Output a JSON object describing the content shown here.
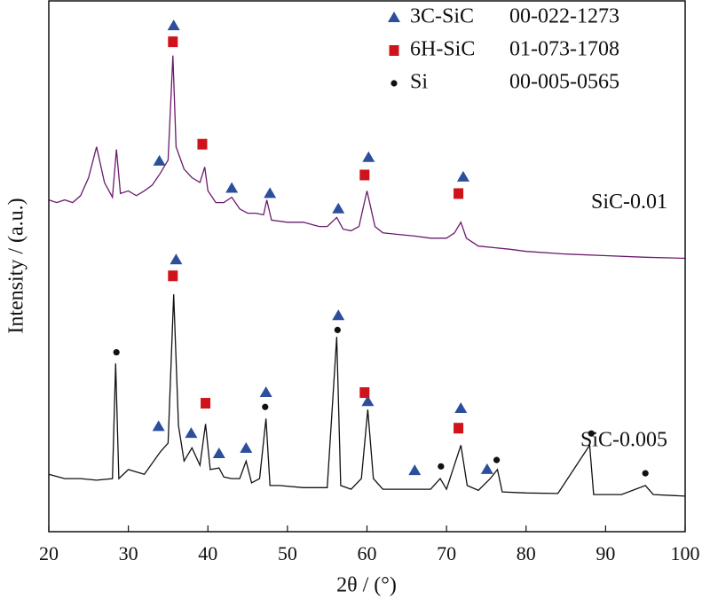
{
  "chart_data": {
    "type": "line",
    "x_label": "2θ / (°)",
    "y_label": "Intensity / (a.u.)",
    "xlim": [
      20,
      100
    ],
    "xticks": [
      20,
      30,
      40,
      50,
      60,
      70,
      80,
      90,
      100
    ],
    "ylim": [
      0,
      100
    ],
    "series": [
      {
        "name": "SiC-0.01",
        "color": "#6b1a6e",
        "x": [
          20,
          21,
          22,
          23,
          24,
          25,
          26,
          27,
          28,
          28.5,
          29,
          30,
          31,
          32,
          33,
          34,
          35,
          35.6,
          36,
          37,
          38,
          39,
          39.6,
          40,
          41,
          42,
          43,
          44,
          45,
          46,
          47,
          47.4,
          48,
          50,
          52,
          54,
          55,
          56.2,
          57,
          58,
          59,
          60,
          61,
          62,
          64,
          66,
          68,
          70,
          71,
          71.8,
          72.5,
          74,
          76,
          78,
          80,
          85,
          90,
          95,
          100
        ],
        "values": [
          62.5,
          62,
          62.5,
          62,
          63.3,
          66.7,
          72.5,
          65.8,
          63,
          72,
          63.7,
          64.2,
          63.3,
          64.2,
          65.3,
          67.5,
          70,
          89.7,
          72.5,
          68.3,
          66.7,
          65.8,
          68.7,
          64.2,
          62,
          62,
          63,
          60.8,
          60,
          60,
          59.7,
          62.5,
          58.7,
          58.3,
          58.3,
          57.5,
          57.5,
          59.2,
          57,
          56.7,
          57.5,
          64.2,
          57.5,
          56.3,
          56,
          55.7,
          55.3,
          55.3,
          56.3,
          58.3,
          55.3,
          53.8,
          53.5,
          53.2,
          52.8,
          52.3,
          52,
          51.7,
          51.5
        ]
      },
      {
        "name": "SiC-0.005",
        "color": "#111111",
        "x": [
          20,
          22,
          24,
          26,
          28,
          28.4,
          28.8,
          30,
          32,
          34,
          35,
          35.7,
          36.3,
          37,
          38,
          39,
          39.7,
          40.3,
          41.4,
          42,
          43,
          44,
          44.8,
          45.5,
          46.5,
          47.3,
          47.8,
          49,
          52,
          55,
          56.2,
          56.7,
          58,
          59.3,
          60.1,
          60.8,
          62,
          64,
          66,
          68,
          69.2,
          70,
          71.8,
          72.6,
          74,
          75.5,
          76.4,
          77,
          80,
          84,
          88,
          88.5,
          92,
          95,
          96,
          100
        ],
        "values": [
          10.8,
          10,
          10,
          9.7,
          10,
          31.7,
          10,
          11.7,
          10.8,
          15,
          16.7,
          44.7,
          20,
          13.3,
          15.8,
          12.5,
          20.3,
          11.7,
          12,
          10.3,
          10,
          10,
          13.3,
          9.2,
          10,
          21.3,
          8.7,
          8.7,
          8.3,
          8.3,
          36.7,
          8.7,
          8,
          10,
          23,
          10,
          8,
          8,
          8,
          8,
          10,
          8,
          16.3,
          8.7,
          7.8,
          10,
          11.7,
          7.5,
          7.3,
          7.2,
          16.3,
          7,
          7,
          8.7,
          7,
          6.7
        ]
      }
    ],
    "phases": [
      {
        "name": "3C-SiC",
        "code": "00-022-1273",
        "marker": "triangle",
        "color": "#2b4f9c",
        "x": [
          35.7,
          33.9,
          43.0,
          47.8,
          56.4,
          60.2,
          72.1,
          36.0,
          33.8,
          37.9,
          41.4,
          44.8,
          47.3,
          56.4,
          60.1,
          66.0,
          71.8,
          75.1
        ],
        "y": [
          95.3,
          69.8,
          64.7,
          63.7,
          60.8,
          70.5,
          66.8,
          51.2,
          19.8,
          18.5,
          14.7,
          15.7,
          26.2,
          40.7,
          24.5,
          11.5,
          23.2,
          11.7
        ]
      },
      {
        "name": "6H-SiC",
        "code": "01-073-1708",
        "marker": "square",
        "color": "#d0121b",
        "x": [
          35.6,
          39.3,
          59.7,
          71.5,
          35.6,
          39.7,
          59.7,
          71.5
        ],
        "y": [
          92.3,
          73,
          67.2,
          63.7,
          48.2,
          24.2,
          26.2,
          19.5
        ]
      },
      {
        "name": "Si",
        "code": "00-005-0565",
        "marker": "circle",
        "color": "#111111",
        "x": [
          28.5,
          47.2,
          56.3,
          69.3,
          76.3,
          88.2,
          95.0
        ],
        "y": [
          33.8,
          23.5,
          38,
          12.3,
          13.5,
          18.5,
          11
        ]
      }
    ]
  }
}
